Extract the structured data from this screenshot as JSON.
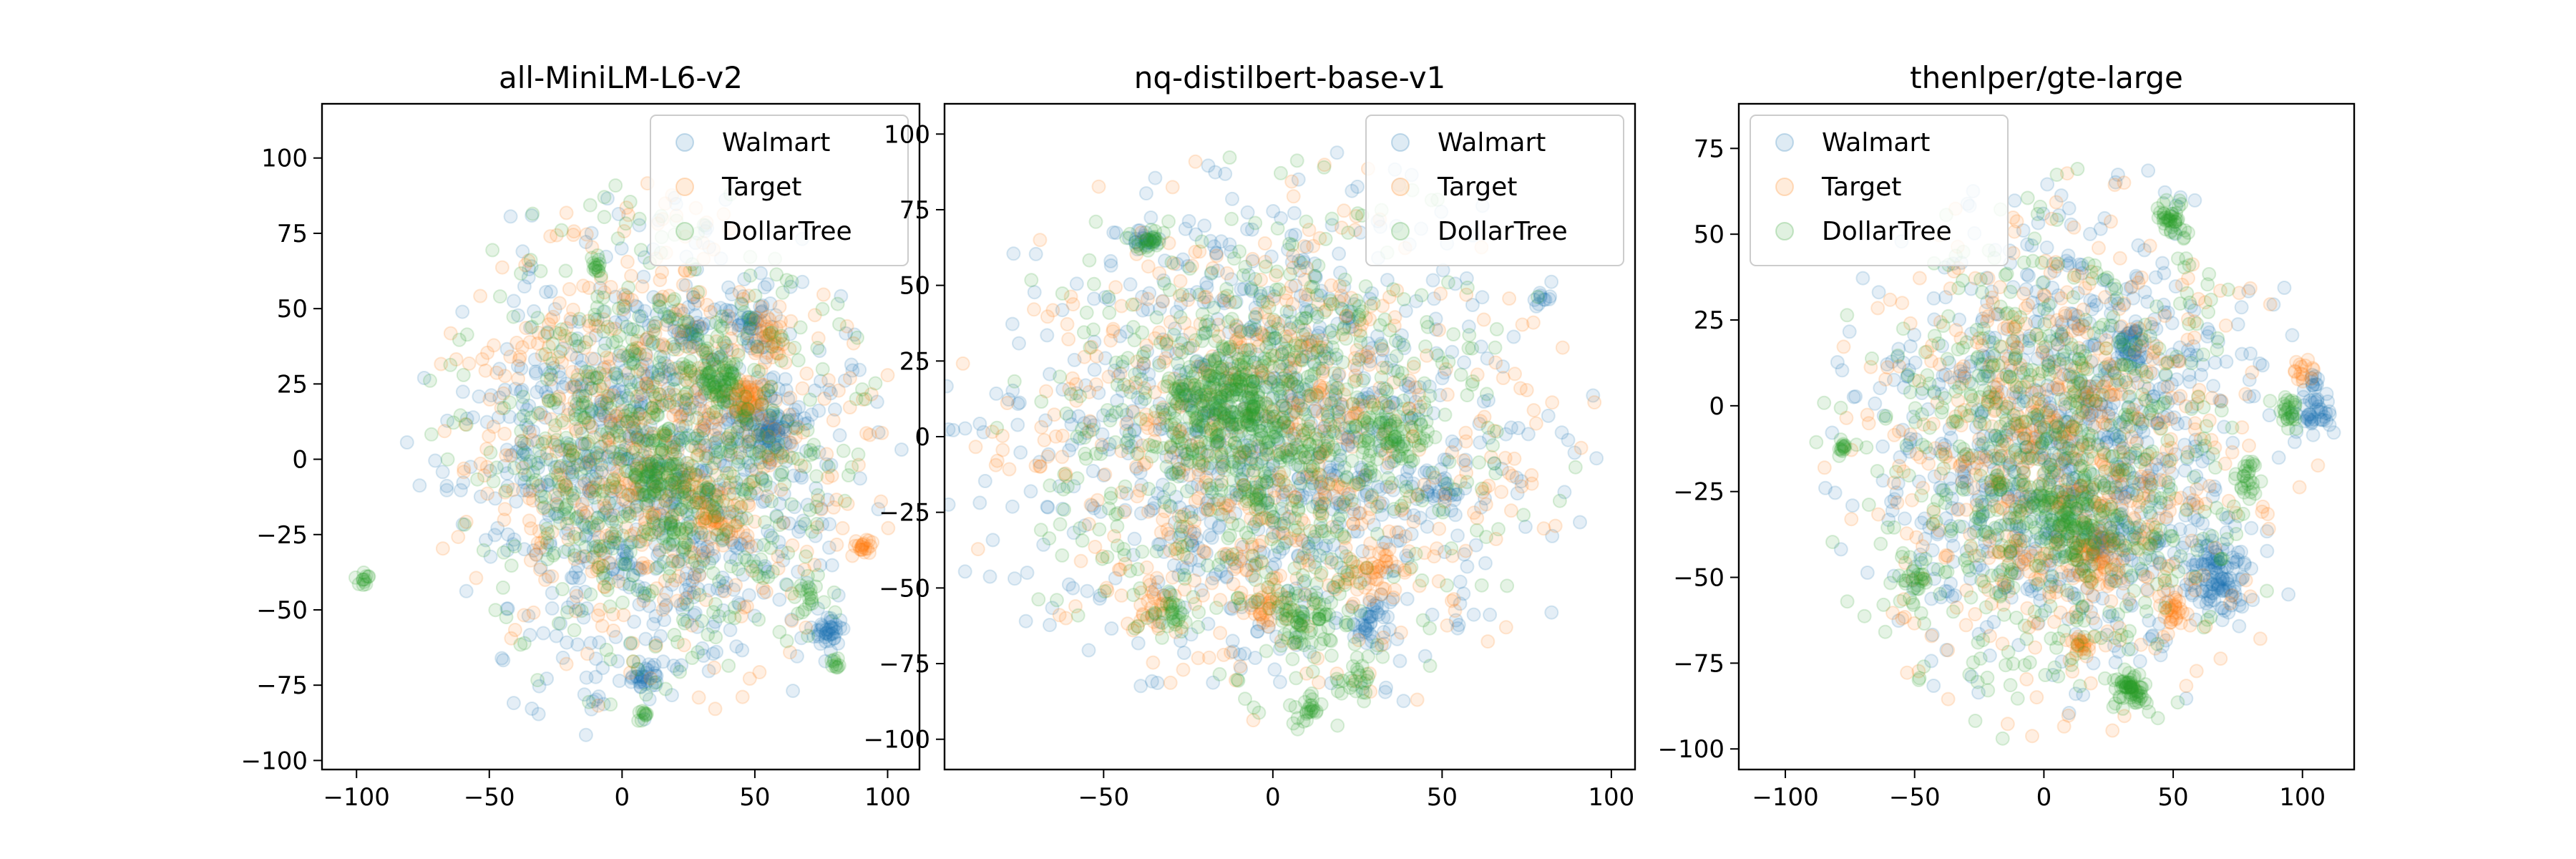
{
  "chart_data": [
    {
      "type": "scatter",
      "title": "all-MiniLM-L6-v2",
      "xlabel": "",
      "ylabel": "",
      "xlim": [
        -113,
        112
      ],
      "ylim": [
        -103,
        118
      ],
      "xticks": [
        -100,
        -50,
        0,
        50,
        100
      ],
      "yticks": [
        -100,
        -75,
        -50,
        -25,
        0,
        25,
        50,
        75,
        100
      ],
      "xtick_labels": [
        "−100",
        "−50",
        "0",
        "50",
        "100"
      ],
      "ytick_labels": [
        "−100",
        "−75",
        "−50",
        "−25",
        "0",
        "25",
        "50",
        "75",
        "100"
      ],
      "legend": {
        "position": "upper right"
      },
      "grid": false,
      "series": [
        {
          "name": "Walmart",
          "color": "#1f77b4",
          "alpha": 0.12,
          "cloud": {
            "cx": 10,
            "cy": 0,
            "sx": 40,
            "sy": 42,
            "n": 900,
            "seed": 11
          },
          "clusters": [
            {
              "x": 55,
              "y": 10,
              "r": 5,
              "n": 90
            },
            {
              "x": 48,
              "y": 45,
              "r": 4,
              "n": 40
            },
            {
              "x": 77,
              "y": -58,
              "r": 3,
              "n": 40
            },
            {
              "x": 8,
              "y": -73,
              "r": 3,
              "n": 30
            },
            {
              "x": 27,
              "y": 43,
              "r": 3,
              "n": 20
            }
          ]
        },
        {
          "name": "Target",
          "color": "#ff7f0e",
          "alpha": 0.12,
          "cloud": {
            "cx": 10,
            "cy": 5,
            "sx": 40,
            "sy": 40,
            "n": 700,
            "seed": 23
          },
          "clusters": [
            {
              "x": 47,
              "y": 20,
              "r": 4,
              "n": 50
            },
            {
              "x": 33,
              "y": -20,
              "r": 3,
              "n": 30
            },
            {
              "x": 90,
              "y": -30,
              "r": 2,
              "n": 20
            },
            {
              "x": 55,
              "y": 40,
              "r": 3,
              "n": 20
            }
          ]
        },
        {
          "name": "DollarTree",
          "color": "#2ca02c",
          "alpha": 0.12,
          "cloud": {
            "cx": 15,
            "cy": 5,
            "sx": 38,
            "sy": 40,
            "n": 700,
            "seed": 37
          },
          "clusters": [
            {
              "x": 35,
              "y": 27,
              "r": 4,
              "n": 50
            },
            {
              "x": 10,
              "y": -5,
              "r": 4,
              "n": 40
            },
            {
              "x": -97,
              "y": -40,
              "r": 1,
              "n": 12
            },
            {
              "x": 70,
              "y": -45,
              "r": 3,
              "n": 20
            },
            {
              "x": 80,
              "y": -68,
              "r": 1,
              "n": 10
            },
            {
              "x": 8,
              "y": -85,
              "r": 1,
              "n": 10
            },
            {
              "x": -10,
              "y": 65,
              "r": 2,
              "n": 15
            },
            {
              "x": 20,
              "y": -25,
              "r": 3,
              "n": 20
            }
          ]
        }
      ]
    },
    {
      "type": "scatter",
      "title": "nq-distilbert-base-v1",
      "xlabel": "",
      "ylabel": "",
      "xlim": [
        -97,
        107
      ],
      "ylim": [
        -110,
        110
      ],
      "xticks": [
        -50,
        0,
        50,
        100
      ],
      "yticks": [
        -100,
        -75,
        -50,
        -25,
        0,
        25,
        50,
        75,
        100
      ],
      "xtick_labels": [
        "−50",
        "0",
        "50",
        "100"
      ],
      "ytick_labels": [
        "−100",
        "−75",
        "−50",
        "−25",
        "0",
        "25",
        "50",
        "75",
        "100"
      ],
      "legend": {
        "position": "upper right"
      },
      "grid": false,
      "series": [
        {
          "name": "Walmart",
          "color": "#1f77b4",
          "alpha": 0.12,
          "cloud": {
            "cx": 0,
            "cy": 0,
            "sx": 42,
            "sy": 45,
            "n": 900,
            "seed": 53
          },
          "clusters": [
            {
              "x": 28,
              "y": -60,
              "r": 4,
              "n": 40
            },
            {
              "x": 50,
              "y": -17,
              "r": 3,
              "n": 25
            },
            {
              "x": -37,
              "y": 65,
              "r": 2,
              "n": 20
            },
            {
              "x": 80,
              "y": 45,
              "r": 2,
              "n": 10
            }
          ]
        },
        {
          "name": "Target",
          "color": "#ff7f0e",
          "alpha": 0.12,
          "cloud": {
            "cx": 0,
            "cy": 0,
            "sx": 42,
            "sy": 42,
            "n": 700,
            "seed": 67
          },
          "clusters": [
            {
              "x": 30,
              "y": -45,
              "r": 5,
              "n": 40
            },
            {
              "x": -35,
              "y": -55,
              "r": 4,
              "n": 30
            },
            {
              "x": 0,
              "y": -55,
              "r": 4,
              "n": 30
            }
          ]
        },
        {
          "name": "DollarTree",
          "color": "#2ca02c",
          "alpha": 0.12,
          "cloud": {
            "cx": 0,
            "cy": 0,
            "sx": 38,
            "sy": 42,
            "n": 700,
            "seed": 79
          },
          "clusters": [
            {
              "x": -12,
              "y": 12,
              "r": 10,
              "n": 260
            },
            {
              "x": 35,
              "y": 0,
              "r": 5,
              "n": 60
            },
            {
              "x": -37,
              "y": 65,
              "r": 2,
              "n": 25
            },
            {
              "x": 10,
              "y": -60,
              "r": 6,
              "n": 60
            },
            {
              "x": 25,
              "y": -80,
              "r": 3,
              "n": 25
            },
            {
              "x": 10,
              "y": -90,
              "r": 3,
              "n": 25
            },
            {
              "x": -5,
              "y": -20,
              "r": 2,
              "n": 15
            },
            {
              "x": -30,
              "y": -58,
              "r": 3,
              "n": 25
            }
          ]
        }
      ]
    },
    {
      "type": "scatter",
      "title": "thenlper/gte-large",
      "xlabel": "",
      "ylabel": "",
      "xlim": [
        -118,
        120
      ],
      "ylim": [
        -106,
        88
      ],
      "xticks": [
        -100,
        -50,
        0,
        50,
        100
      ],
      "yticks": [
        -100,
        -75,
        -50,
        -25,
        0,
        25,
        50,
        75
      ],
      "xtick_labels": [
        "−100",
        "−50",
        "0",
        "50",
        "100"
      ],
      "ytick_labels": [
        "−100",
        "−75",
        "−50",
        "−25",
        "0",
        "25",
        "50",
        "75"
      ],
      "legend": {
        "position": "upper left"
      },
      "grid": false,
      "series": [
        {
          "name": "Walmart",
          "color": "#1f77b4",
          "alpha": 0.12,
          "cloud": {
            "cx": 10,
            "cy": -10,
            "sx": 42,
            "sy": 38,
            "n": 900,
            "seed": 97
          },
          "clusters": [
            {
              "x": 67,
              "y": -50,
              "r": 6,
              "n": 120
            },
            {
              "x": 33,
              "y": 17,
              "r": 3,
              "n": 40
            },
            {
              "x": 105,
              "y": -3,
              "r": 3,
              "n": 40
            },
            {
              "x": 25,
              "y": -40,
              "r": 4,
              "n": 40
            },
            {
              "x": 105,
              "y": 7,
              "r": 1,
              "n": 10
            }
          ]
        },
        {
          "name": "Target",
          "color": "#ff7f0e",
          "alpha": 0.12,
          "cloud": {
            "cx": 10,
            "cy": -15,
            "sx": 42,
            "sy": 38,
            "n": 700,
            "seed": 109
          },
          "clusters": [
            {
              "x": 50,
              "y": -60,
              "r": 3,
              "n": 30
            },
            {
              "x": 15,
              "y": -70,
              "r": 2,
              "n": 20
            },
            {
              "x": 20,
              "y": -45,
              "r": 5,
              "n": 60
            },
            {
              "x": 100,
              "y": 10,
              "r": 2,
              "n": 15
            }
          ]
        },
        {
          "name": "DollarTree",
          "color": "#2ca02c",
          "alpha": 0.12,
          "cloud": {
            "cx": 5,
            "cy": -15,
            "sx": 40,
            "sy": 38,
            "n": 700,
            "seed": 127
          },
          "clusters": [
            {
              "x": 33,
              "y": -83,
              "r": 3,
              "n": 60
            },
            {
              "x": 50,
              "y": 55,
              "r": 3,
              "n": 40
            },
            {
              "x": 10,
              "y": -35,
              "r": 6,
              "n": 80
            },
            {
              "x": -50,
              "y": -50,
              "r": 3,
              "n": 25
            },
            {
              "x": -78,
              "y": -12,
              "r": 1,
              "n": 12
            },
            {
              "x": 95,
              "y": -2,
              "r": 2,
              "n": 25
            },
            {
              "x": 80,
              "y": -20,
              "r": 3,
              "n": 25
            }
          ]
        }
      ]
    }
  ]
}
